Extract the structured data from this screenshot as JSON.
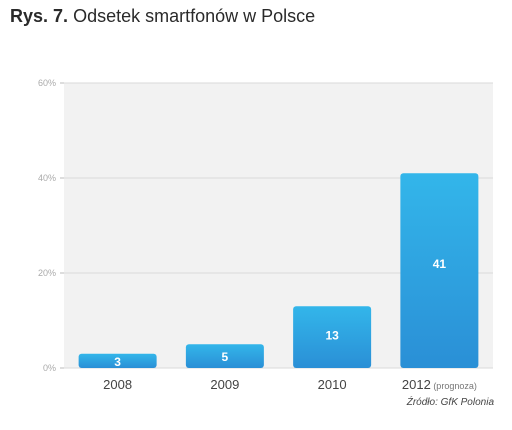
{
  "title": {
    "number": "Rys. 7.",
    "text": "Odsetek smartfonów w Polsce"
  },
  "source": "Źródło: GfK Polonia",
  "colors": {
    "plot_bg": "#f2f2f2",
    "bar_top": "#33b6ea",
    "bar_bottom": "#2a8fd6",
    "grid": "#d9d9d9"
  },
  "chart_data": {
    "type": "bar",
    "categories": [
      "2008",
      "2009",
      "2010",
      "2012"
    ],
    "category_notes": [
      "",
      "",
      "",
      "(prognoza)"
    ],
    "values": [
      3,
      5,
      13,
      41
    ],
    "data_labels": [
      "3",
      "5",
      "13",
      "41"
    ],
    "yticks": [
      "0%",
      "20%",
      "40%",
      "60%"
    ],
    "ytick_values": [
      0,
      20,
      40,
      60
    ],
    "ylim": [
      0,
      60
    ],
    "grid": true
  }
}
